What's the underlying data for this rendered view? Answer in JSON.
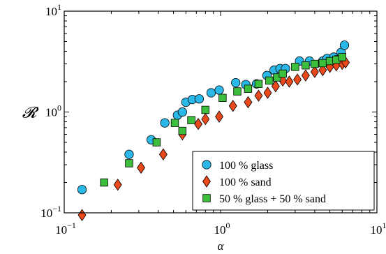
{
  "chart_data": {
    "type": "scatter",
    "xscale": "log",
    "yscale": "log",
    "xlim": [
      0.1,
      10
    ],
    "ylim": [
      0.1,
      10
    ],
    "xlabel": "α",
    "ylabel": "𝓡",
    "x_ticks": [
      {
        "base": "10",
        "exp": "−1"
      },
      {
        "base": "10",
        "exp": "0"
      },
      {
        "base": "10",
        "exp": "1"
      }
    ],
    "y_ticks": [
      {
        "base": "10",
        "exp": "−1"
      },
      {
        "base": "10",
        "exp": "0"
      },
      {
        "base": "10",
        "exp": "1"
      }
    ],
    "grid": false,
    "legend_position": "bottom-right",
    "series": [
      {
        "name": "100 % glass",
        "marker": "circle",
        "color": "#29b8e8",
        "points": [
          [
            0.13,
            0.17
          ],
          [
            0.26,
            0.38
          ],
          [
            0.36,
            0.53
          ],
          [
            0.44,
            0.78
          ],
          [
            0.53,
            0.93
          ],
          [
            0.57,
            1.0
          ],
          [
            0.6,
            1.25
          ],
          [
            0.66,
            1.33
          ],
          [
            0.73,
            1.35
          ],
          [
            0.87,
            1.55
          ],
          [
            0.98,
            1.65
          ],
          [
            1.25,
            1.95
          ],
          [
            1.45,
            1.87
          ],
          [
            1.7,
            1.9
          ],
          [
            1.98,
            2.3
          ],
          [
            2.2,
            2.6
          ],
          [
            2.4,
            2.7
          ],
          [
            2.6,
            2.7
          ],
          [
            3.2,
            3.2
          ],
          [
            3.7,
            3.2
          ],
          [
            4.5,
            3.2
          ],
          [
            4.8,
            3.4
          ],
          [
            5.3,
            3.5
          ],
          [
            5.5,
            3.3
          ],
          [
            5.9,
            3.9
          ],
          [
            6.2,
            4.6
          ]
        ]
      },
      {
        "name": "100 % sand",
        "marker": "diamond",
        "color": "#e8481a",
        "points": [
          [
            0.13,
            0.095
          ],
          [
            0.22,
            0.19
          ],
          [
            0.31,
            0.28
          ],
          [
            0.43,
            0.38
          ],
          [
            0.57,
            0.6
          ],
          [
            0.72,
            0.76
          ],
          [
            0.8,
            0.85
          ],
          [
            0.98,
            0.9
          ],
          [
            1.2,
            1.15
          ],
          [
            1.5,
            1.25
          ],
          [
            1.75,
            1.45
          ],
          [
            2.0,
            1.55
          ],
          [
            2.25,
            1.8
          ],
          [
            2.5,
            2.05
          ],
          [
            2.75,
            2.0
          ],
          [
            3.1,
            2.1
          ],
          [
            3.5,
            2.3
          ],
          [
            4.0,
            2.5
          ],
          [
            4.5,
            2.6
          ],
          [
            5.0,
            2.8
          ],
          [
            5.5,
            2.9
          ],
          [
            6.0,
            3.0
          ],
          [
            6.3,
            3.1
          ]
        ]
      },
      {
        "name": "50 % glass + 50 % sand",
        "marker": "square",
        "color": "#3cbf3c",
        "points": [
          [
            0.18,
            0.2
          ],
          [
            0.26,
            0.31
          ],
          [
            0.39,
            0.5
          ],
          [
            0.51,
            0.78
          ],
          [
            0.57,
            0.65
          ],
          [
            0.65,
            0.83
          ],
          [
            0.8,
            1.05
          ],
          [
            1.03,
            1.38
          ],
          [
            1.28,
            1.6
          ],
          [
            1.5,
            1.7
          ],
          [
            1.75,
            1.9
          ],
          [
            2.05,
            2.05
          ],
          [
            2.3,
            2.2
          ],
          [
            2.5,
            2.4
          ],
          [
            3.0,
            2.8
          ],
          [
            3.5,
            2.9
          ],
          [
            4.0,
            3.0
          ],
          [
            4.5,
            3.05
          ],
          [
            5.0,
            3.2
          ],
          [
            5.5,
            3.3
          ],
          [
            6.0,
            3.5
          ]
        ]
      }
    ]
  }
}
